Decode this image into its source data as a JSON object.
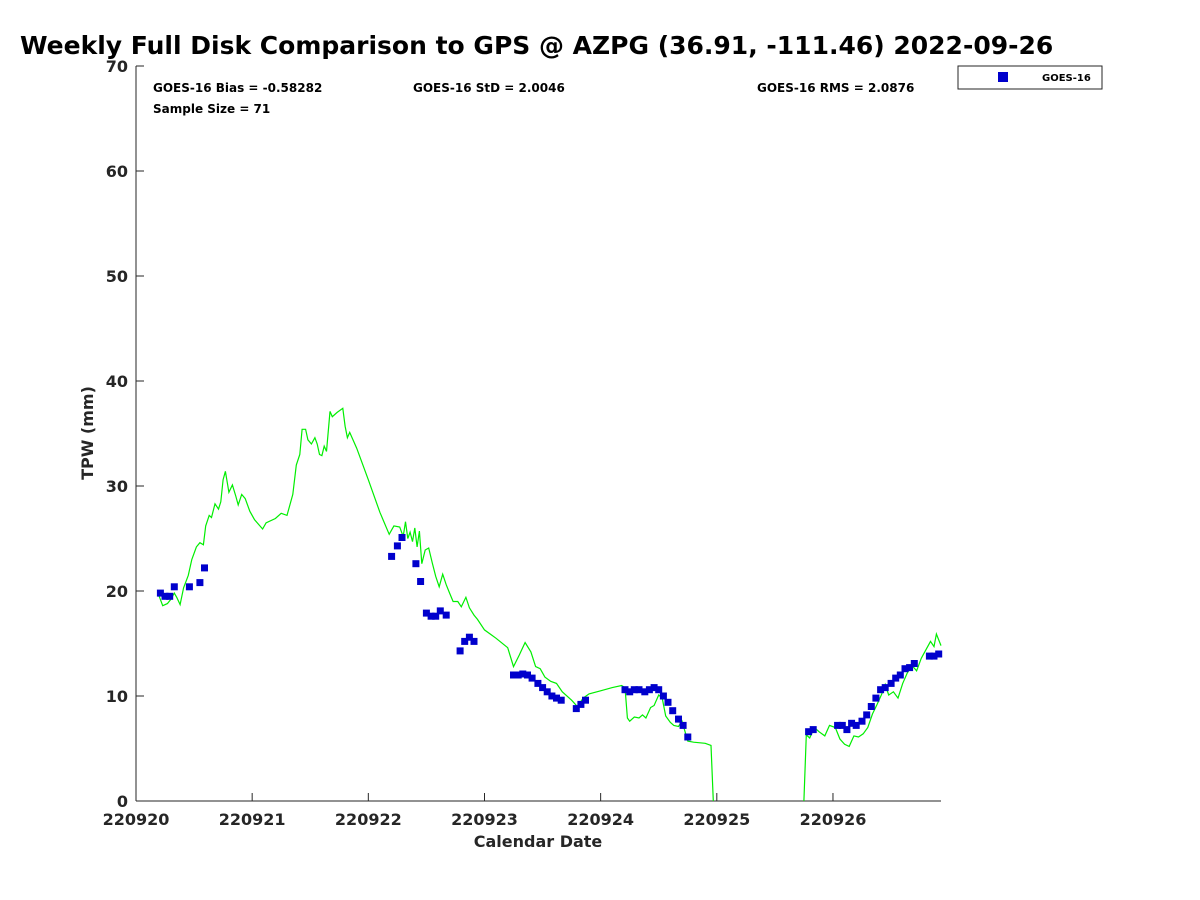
{
  "chart_data": {
    "type": "scatter",
    "title": "Weekly Full Disk Comparison to GPS @ AZPG (36.91, -111.46) 2022-09-26",
    "xlabel": "Calendar Date",
    "ylabel": "TPW (mm)",
    "xlim": [
      220920,
      220926.93
    ],
    "ylim": [
      0,
      70
    ],
    "x_ticks": [
      220920,
      220921,
      220922,
      220923,
      220924,
      220925,
      220926
    ],
    "x_tick_labels": [
      "220920",
      "220921",
      "220922",
      "220923",
      "220924",
      "220925",
      "220926"
    ],
    "y_ticks": [
      0,
      10,
      20,
      30,
      40,
      50,
      60,
      70
    ],
    "y_tick_labels": [
      "0",
      "10",
      "20",
      "30",
      "40",
      "50",
      "60",
      "70"
    ],
    "grid": false,
    "legend": {
      "placement": "top-right-outside",
      "entries": [
        "GOES-16"
      ]
    },
    "stats": {
      "bias": "GOES-16 Bias = -0.58282",
      "std": "GOES-16 StD = 2.0046",
      "rms": "GOES-16 RMS = 2.0876",
      "sample": "Sample Size = 71"
    },
    "series": [
      {
        "name": "GOES-16",
        "kind": "scatter",
        "color": "#0000cc",
        "points": [
          [
            220920.21,
            19.8
          ],
          [
            220920.25,
            19.5
          ],
          [
            220920.29,
            19.5
          ],
          [
            220920.33,
            20.4
          ],
          [
            220920.46,
            20.4
          ],
          [
            220920.55,
            20.8
          ],
          [
            220920.59,
            22.2
          ],
          [
            220922.2,
            23.3
          ],
          [
            220922.25,
            24.3
          ],
          [
            220922.29,
            25.1
          ],
          [
            220922.41,
            22.6
          ],
          [
            220922.45,
            20.9
          ],
          [
            220922.5,
            17.9
          ],
          [
            220922.54,
            17.6
          ],
          [
            220922.58,
            17.6
          ],
          [
            220922.62,
            18.1
          ],
          [
            220922.67,
            17.7
          ],
          [
            220922.79,
            14.3
          ],
          [
            220922.83,
            15.2
          ],
          [
            220922.87,
            15.6
          ],
          [
            220922.91,
            15.2
          ],
          [
            220923.25,
            12.0
          ],
          [
            220923.29,
            12.0
          ],
          [
            220923.33,
            12.1
          ],
          [
            220923.37,
            12.0
          ],
          [
            220923.41,
            11.7
          ],
          [
            220923.46,
            11.2
          ],
          [
            220923.5,
            10.8
          ],
          [
            220923.54,
            10.4
          ],
          [
            220923.58,
            10.0
          ],
          [
            220923.62,
            9.8
          ],
          [
            220923.66,
            9.6
          ],
          [
            220923.79,
            8.8
          ],
          [
            220923.83,
            9.2
          ],
          [
            220923.87,
            9.6
          ],
          [
            220924.21,
            10.6
          ],
          [
            220924.25,
            10.4
          ],
          [
            220924.29,
            10.6
          ],
          [
            220924.33,
            10.6
          ],
          [
            220924.38,
            10.4
          ],
          [
            220924.42,
            10.6
          ],
          [
            220924.46,
            10.8
          ],
          [
            220924.5,
            10.6
          ],
          [
            220924.54,
            10.0
          ],
          [
            220924.58,
            9.4
          ],
          [
            220924.62,
            8.6
          ],
          [
            220924.67,
            7.8
          ],
          [
            220924.71,
            7.2
          ],
          [
            220924.75,
            6.1
          ],
          [
            220925.79,
            6.6
          ],
          [
            220925.83,
            6.8
          ],
          [
            220926.04,
            7.2
          ],
          [
            220926.08,
            7.2
          ],
          [
            220926.12,
            6.8
          ],
          [
            220926.16,
            7.4
          ],
          [
            220926.2,
            7.2
          ],
          [
            220926.25,
            7.6
          ],
          [
            220926.29,
            8.2
          ],
          [
            220926.33,
            9.0
          ],
          [
            220926.37,
            9.8
          ],
          [
            220926.41,
            10.6
          ],
          [
            220926.45,
            10.8
          ],
          [
            220926.5,
            11.2
          ],
          [
            220926.54,
            11.7
          ],
          [
            220926.58,
            12.0
          ],
          [
            220926.62,
            12.6
          ],
          [
            220926.66,
            12.7
          ],
          [
            220926.7,
            13.1
          ],
          [
            220926.83,
            13.8
          ],
          [
            220926.87,
            13.8
          ],
          [
            220926.91,
            14.0
          ]
        ]
      },
      {
        "name": "GPS",
        "kind": "line",
        "color": "#00ee00",
        "points": [
          [
            220920.2,
            19.5
          ],
          [
            220920.23,
            18.6
          ],
          [
            220920.27,
            18.8
          ],
          [
            220920.3,
            19.2
          ],
          [
            220920.33,
            19.8
          ],
          [
            220920.35,
            19.4
          ],
          [
            220920.38,
            18.7
          ],
          [
            220920.41,
            20.3
          ],
          [
            220920.45,
            21.5
          ],
          [
            220920.48,
            23.0
          ],
          [
            220920.52,
            24.2
          ],
          [
            220920.55,
            24.6
          ],
          [
            220920.58,
            24.4
          ],
          [
            220920.6,
            26.2
          ],
          [
            220920.63,
            27.2
          ],
          [
            220920.65,
            27.0
          ],
          [
            220920.68,
            28.3
          ],
          [
            220920.71,
            27.8
          ],
          [
            220920.73,
            28.5
          ],
          [
            220920.75,
            30.6
          ],
          [
            220920.77,
            31.4
          ],
          [
            220920.8,
            29.4
          ],
          [
            220920.83,
            30.1
          ],
          [
            220920.86,
            29.0
          ],
          [
            220920.88,
            28.2
          ],
          [
            220920.91,
            29.2
          ],
          [
            220920.94,
            28.8
          ],
          [
            220920.98,
            27.6
          ],
          [
            220921.02,
            26.8
          ],
          [
            220921.09,
            25.9
          ],
          [
            220921.12,
            26.5
          ],
          [
            220921.2,
            26.9
          ],
          [
            220921.25,
            27.4
          ],
          [
            220921.3,
            27.2
          ],
          [
            220921.35,
            29.2
          ],
          [
            220921.38,
            32.0
          ],
          [
            220921.41,
            33.0
          ],
          [
            220921.43,
            35.4
          ],
          [
            220921.46,
            35.4
          ],
          [
            220921.48,
            34.4
          ],
          [
            220921.51,
            34.0
          ],
          [
            220921.54,
            34.6
          ],
          [
            220921.56,
            34.0
          ],
          [
            220921.58,
            33.0
          ],
          [
            220921.6,
            32.9
          ],
          [
            220921.62,
            33.8
          ],
          [
            220921.64,
            33.3
          ],
          [
            220921.67,
            37.1
          ],
          [
            220921.69,
            36.6
          ],
          [
            220921.73,
            37.0
          ],
          [
            220921.78,
            37.4
          ],
          [
            220921.8,
            35.7
          ],
          [
            220921.82,
            34.6
          ],
          [
            220921.84,
            35.1
          ],
          [
            220921.9,
            33.6
          ],
          [
            220922.0,
            30.6
          ],
          [
            220922.1,
            27.5
          ],
          [
            220922.18,
            25.4
          ],
          [
            220922.22,
            26.2
          ],
          [
            220922.27,
            26.1
          ],
          [
            220922.3,
            25.2
          ],
          [
            220922.32,
            26.6
          ],
          [
            220922.34,
            25.0
          ],
          [
            220922.36,
            25.6
          ],
          [
            220922.38,
            24.7
          ],
          [
            220922.4,
            26.0
          ],
          [
            220922.42,
            24.2
          ],
          [
            220922.44,
            25.7
          ],
          [
            220922.46,
            22.6
          ],
          [
            220922.49,
            23.9
          ],
          [
            220922.52,
            24.1
          ],
          [
            220922.55,
            22.7
          ],
          [
            220922.58,
            21.4
          ],
          [
            220922.61,
            20.4
          ],
          [
            220922.64,
            21.6
          ],
          [
            220922.67,
            20.6
          ],
          [
            220922.7,
            19.8
          ],
          [
            220922.73,
            19.0
          ],
          [
            220922.77,
            19.0
          ],
          [
            220922.8,
            18.5
          ],
          [
            220922.84,
            19.4
          ],
          [
            220922.87,
            18.4
          ],
          [
            220922.91,
            17.7
          ],
          [
            220922.94,
            17.3
          ],
          [
            220923.0,
            16.3
          ],
          [
            220923.1,
            15.5
          ],
          [
            220923.2,
            14.6
          ],
          [
            220923.25,
            12.8
          ],
          [
            220923.3,
            13.9
          ],
          [
            220923.35,
            15.1
          ],
          [
            220923.4,
            14.2
          ],
          [
            220923.44,
            12.8
          ],
          [
            220923.48,
            12.6
          ],
          [
            220923.52,
            11.8
          ],
          [
            220923.57,
            11.4
          ],
          [
            220923.62,
            11.2
          ],
          [
            220923.67,
            10.4
          ],
          [
            220923.75,
            9.6
          ],
          [
            220923.8,
            9.0
          ],
          [
            220923.85,
            9.8
          ],
          [
            220923.9,
            10.2
          ],
          [
            220924.0,
            10.5
          ],
          [
            220924.1,
            10.8
          ],
          [
            220924.18,
            11.0
          ],
          [
            220924.21,
            10.8
          ],
          [
            220924.23,
            7.9
          ],
          [
            220924.25,
            7.6
          ],
          [
            220924.29,
            8.0
          ],
          [
            220924.33,
            7.9
          ],
          [
            220924.36,
            8.2
          ],
          [
            220924.39,
            7.9
          ],
          [
            220924.43,
            8.9
          ],
          [
            220924.46,
            9.1
          ],
          [
            220924.5,
            10.1
          ],
          [
            220924.53,
            9.8
          ],
          [
            220924.56,
            8.1
          ],
          [
            220924.6,
            7.5
          ],
          [
            220924.63,
            7.2
          ],
          [
            220924.67,
            7.1
          ],
          [
            220924.7,
            7.6
          ],
          [
            220924.75,
            5.7
          ],
          [
            220924.8,
            5.6
          ],
          [
            220924.9,
            5.5
          ],
          [
            220924.95,
            5.3
          ],
          [
            220924.97,
            0.0
          ]
        ],
        "points_b": [
          [
            220925.75,
            0.0
          ],
          [
            220925.77,
            6.3
          ],
          [
            220925.8,
            6.0
          ],
          [
            220925.84,
            7.0
          ],
          [
            220925.88,
            6.6
          ],
          [
            220925.93,
            6.2
          ],
          [
            220925.97,
            7.2
          ],
          [
            220926.02,
            7.0
          ],
          [
            220926.06,
            5.9
          ],
          [
            220926.1,
            5.4
          ],
          [
            220926.14,
            5.2
          ],
          [
            220926.18,
            6.2
          ],
          [
            220926.22,
            6.1
          ],
          [
            220926.26,
            6.4
          ],
          [
            220926.3,
            7.0
          ],
          [
            220926.34,
            8.3
          ],
          [
            220926.38,
            9.2
          ],
          [
            220926.42,
            10.2
          ],
          [
            220926.45,
            11.1
          ],
          [
            220926.48,
            10.1
          ],
          [
            220926.52,
            10.4
          ],
          [
            220926.56,
            9.8
          ],
          [
            220926.6,
            11.2
          ],
          [
            220926.64,
            12.2
          ],
          [
            220926.68,
            12.9
          ],
          [
            220926.72,
            12.4
          ],
          [
            220926.76,
            13.6
          ],
          [
            220926.8,
            14.4
          ],
          [
            220926.84,
            15.2
          ],
          [
            220926.87,
            14.7
          ],
          [
            220926.89,
            15.9
          ],
          [
            220926.93,
            14.8
          ]
        ]
      }
    ]
  }
}
